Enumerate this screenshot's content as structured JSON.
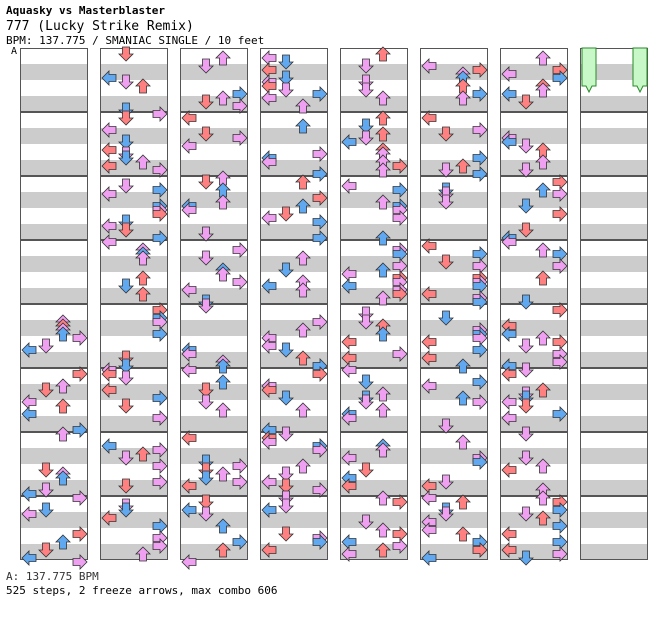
{
  "header": {
    "artist": "Aquasky vs Masterblaster",
    "title": "777 (Lucky Strike Remix)",
    "info": "BPM: 137.775 / SMANIAC SINGLE / 10 feet"
  },
  "bpm_marker": "A",
  "footer": {
    "bpm_line": "A: 137.775 BPM",
    "stats": "525 steps, 2 freeze arrows, max combo 606"
  },
  "chart": {
    "columns": 8,
    "measures_per_column": 8,
    "beats_per_measure": 4,
    "colors": {
      "stripe_gray": "#cccccc",
      "stripe_white": "#ffffff",
      "border": "#555555",
      "quarter_note": "#ff8080",
      "eighth_note": "#60a8f0",
      "sixteenth_note": "#f0a0f0",
      "freeze": "#c8f8c8"
    },
    "arrow_directions": [
      "left-arrow",
      "down-arrow",
      "up-arrow",
      "right-arrow"
    ]
  }
}
